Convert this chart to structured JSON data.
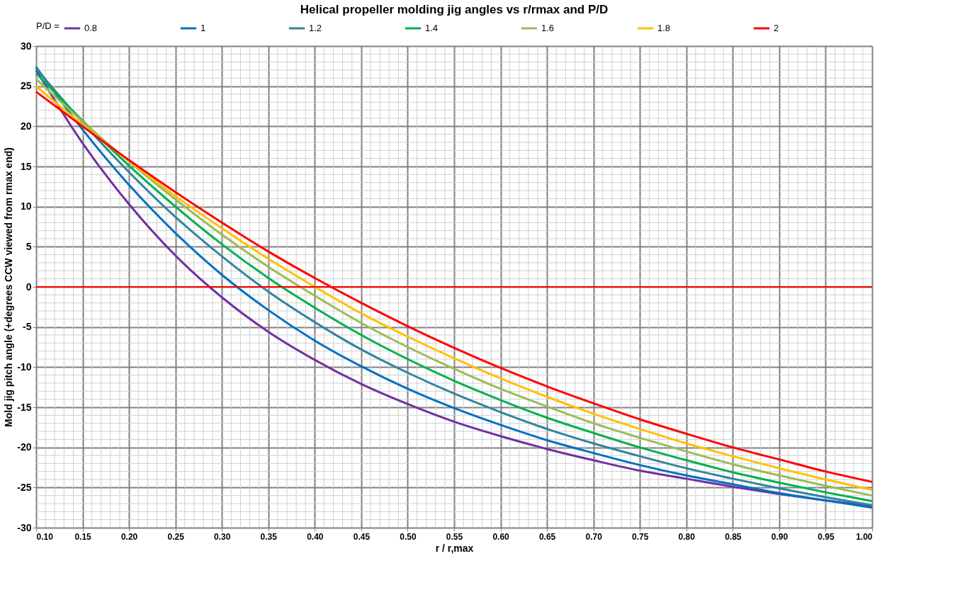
{
  "chart_data": {
    "type": "line",
    "title": "Helical propeller molding jig angles vs r/rmax and P/D",
    "xlabel": "r / r,max",
    "ylabel": "Mold jig pitch angle (+degrees CCW viewed from rmax end)",
    "legend_title": "P/D =",
    "legend": "top",
    "grid": true,
    "x": [
      0.1,
      0.15,
      0.2,
      0.25,
      0.3,
      0.35,
      0.4,
      0.45,
      0.5,
      0.55,
      0.6,
      0.65,
      0.7,
      0.75,
      0.8,
      0.85,
      0.9,
      0.95,
      1.0
    ],
    "xlim": [
      0.1,
      1.0
    ],
    "ylim": [
      -30,
      30
    ],
    "xticks": [
      {
        "value": 0.1,
        "label": "0.10"
      },
      {
        "value": 0.15,
        "label": "0.15"
      },
      {
        "value": 0.2,
        "label": "0.20"
      },
      {
        "value": 0.25,
        "label": "0.25"
      },
      {
        "value": 0.3,
        "label": "0.30"
      },
      {
        "value": 0.35,
        "label": "0.35"
      },
      {
        "value": 0.4,
        "label": "0.40"
      },
      {
        "value": 0.45,
        "label": "0.45"
      },
      {
        "value": 0.5,
        "label": "0.50"
      },
      {
        "value": 0.55,
        "label": "0.55"
      },
      {
        "value": 0.6,
        "label": "0.60"
      },
      {
        "value": 0.65,
        "label": "0.65"
      },
      {
        "value": 0.7,
        "label": "0.70"
      },
      {
        "value": 0.75,
        "label": "0.75"
      },
      {
        "value": 0.8,
        "label": "0.80"
      },
      {
        "value": 0.85,
        "label": "0.85"
      },
      {
        "value": 0.9,
        "label": "0.90"
      },
      {
        "value": 0.95,
        "label": "0.95"
      },
      {
        "value": 1.0,
        "label": "1.00"
      }
    ],
    "yticks": [
      -30,
      -25,
      -20,
      -15,
      -10,
      -5,
      0,
      5,
      10,
      15,
      20,
      25,
      30
    ],
    "ref_lines": [
      {
        "axis": "y",
        "value": 0,
        "color": "#ff0000"
      }
    ],
    "series": [
      {
        "name": "0.8",
        "color": "#7030a0",
        "values": [
          27.0,
          17.9,
          10.3,
          3.9,
          -1.3,
          -5.6,
          -9.1,
          -12.1,
          -14.6,
          -16.8,
          -18.6,
          -20.2,
          -21.6,
          -22.9,
          -23.9,
          -24.9,
          -25.8,
          -26.6,
          -27.3
        ]
      },
      {
        "name": "1",
        "color": "#0070c0",
        "values": [
          27.4,
          19.6,
          12.7,
          6.7,
          1.5,
          -2.9,
          -6.7,
          -9.9,
          -12.7,
          -15.1,
          -17.2,
          -19.1,
          -20.7,
          -22.2,
          -23.5,
          -24.6,
          -25.7,
          -26.6,
          -27.5
        ]
      },
      {
        "name": "1.2",
        "color": "#31859c",
        "values": [
          27.2,
          20.5,
          14.3,
          8.7,
          3.8,
          -0.6,
          -4.4,
          -7.8,
          -10.7,
          -13.3,
          -15.6,
          -17.7,
          -19.5,
          -21.1,
          -22.6,
          -23.9,
          -25.1,
          -26.2,
          -27.2
        ]
      },
      {
        "name": "1.4",
        "color": "#00b050",
        "values": [
          26.6,
          20.7,
          15.1,
          10.0,
          5.3,
          1.1,
          -2.6,
          -6.0,
          -9.0,
          -11.7,
          -14.1,
          -16.3,
          -18.2,
          -20.0,
          -21.6,
          -23.1,
          -24.4,
          -25.6,
          -26.7
        ]
      },
      {
        "name": "1.6",
        "color": "#9bbb59",
        "values": [
          25.9,
          20.6,
          15.6,
          10.9,
          6.5,
          2.5,
          -1.1,
          -4.5,
          -7.5,
          -10.2,
          -12.7,
          -14.9,
          -17.0,
          -18.8,
          -20.5,
          -22.1,
          -23.5,
          -24.8,
          -26.0
        ]
      },
      {
        "name": "1.8",
        "color": "#ffc000",
        "values": [
          25.0,
          20.2,
          15.7,
          11.3,
          7.3,
          3.5,
          0.0,
          -3.3,
          -6.2,
          -8.9,
          -11.4,
          -13.7,
          -15.8,
          -17.7,
          -19.5,
          -21.1,
          -22.6,
          -24.0,
          -25.3
        ]
      },
      {
        "name": "2",
        "color": "#ff0000",
        "values": [
          24.3,
          20.0,
          15.8,
          11.8,
          8.0,
          4.4,
          1.1,
          -2.0,
          -4.9,
          -7.6,
          -10.1,
          -12.4,
          -14.5,
          -16.5,
          -18.3,
          -20.0,
          -21.5,
          -23.0,
          -24.3
        ]
      }
    ]
  }
}
